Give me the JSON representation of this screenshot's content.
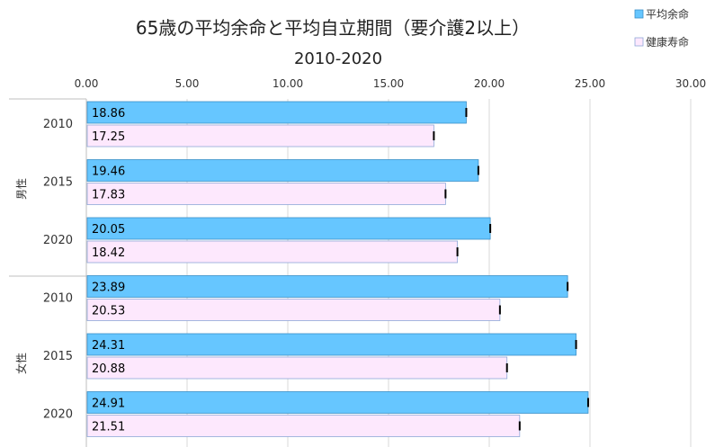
{
  "chart_data": {
    "type": "bar",
    "orientation": "horizontal",
    "title": "65歳の平均余命と平均自立期間（要介護2以上）",
    "subtitle": "2010-2020",
    "xlim": [
      0,
      30
    ],
    "xticks": [
      "0.00",
      "5.00",
      "10.00",
      "15.00",
      "20.00",
      "25.00",
      "30.00"
    ],
    "x_axis_position": "top",
    "grid": true,
    "legend_position": "top-right",
    "groups": [
      {
        "label": "男性",
        "years": [
          "2010",
          "2015",
          "2020"
        ]
      },
      {
        "label": "女性",
        "years": [
          "2010",
          "2015",
          "2020"
        ]
      }
    ],
    "series": [
      {
        "name": "平均余命",
        "color": "#66c6ff",
        "border": "#3a8fc8",
        "values": [
          18.86,
          19.46,
          20.05,
          23.89,
          24.31,
          24.91
        ],
        "labels": [
          "18.86",
          "19.46",
          "20.05",
          "23.89",
          "24.31",
          "24.91"
        ]
      },
      {
        "name": "健康寿命",
        "color": "#fde8fd",
        "border": "#8fa8d8",
        "values": [
          17.25,
          17.83,
          18.42,
          20.53,
          20.88,
          21.51
        ],
        "labels": [
          "17.25",
          "17.83",
          "18.42",
          "20.53",
          "20.88",
          "21.51"
        ]
      }
    ]
  }
}
